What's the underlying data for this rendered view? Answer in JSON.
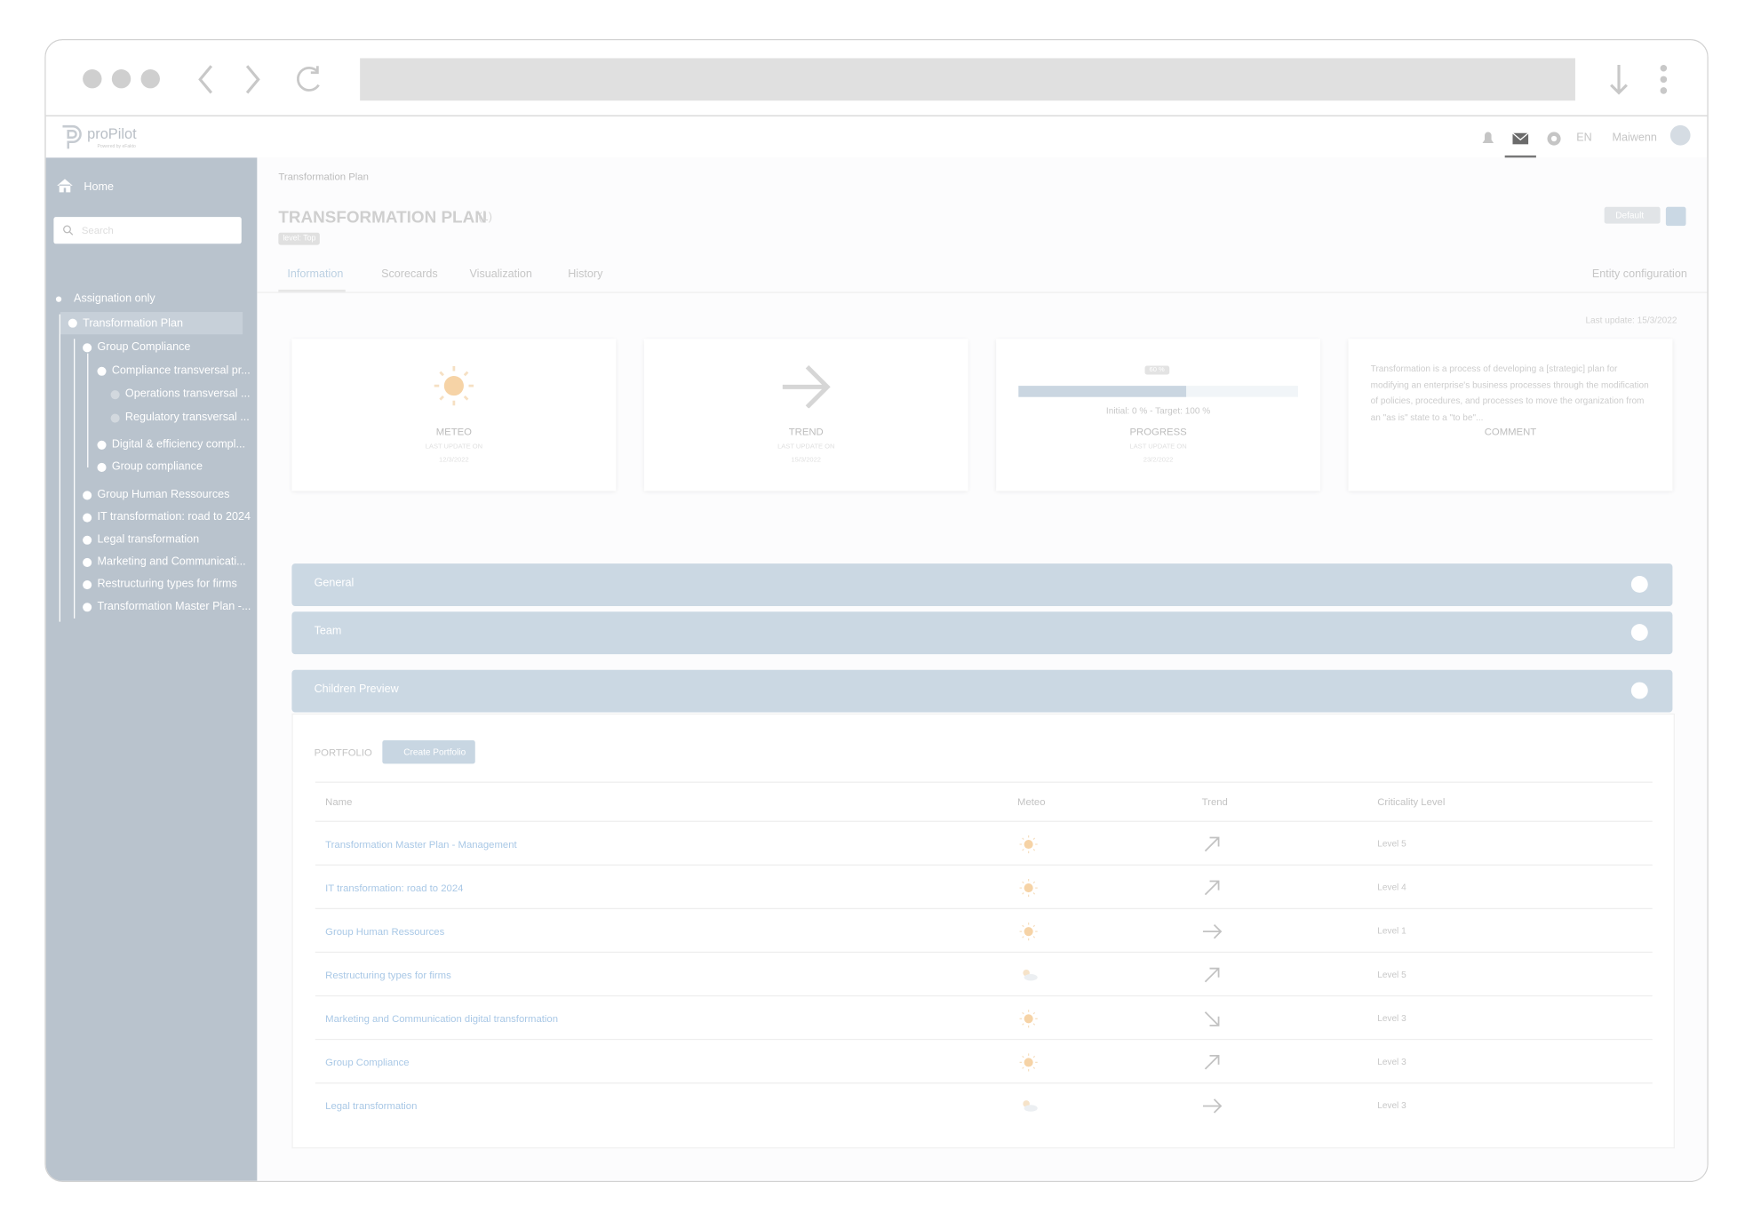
{
  "app": {
    "logo": "proPilot",
    "logo_sub": "Powered by eFakto",
    "language": "EN",
    "user": "Maiwenn"
  },
  "sidebar": {
    "home": "Home",
    "search_placeholder": "Search",
    "assignation": "Assignation only",
    "tree": {
      "label": "Transformation Plan",
      "children": [
        {
          "label": "Group Compliance",
          "children": [
            {
              "label": "Compliance transversal pr...",
              "children": [
                {
                  "label": "Operations transversal ..."
                },
                {
                  "label": "Regulatory transversal ..."
                }
              ]
            },
            {
              "label": "Digital & efficiency compl..."
            },
            {
              "label": "Group compliance"
            }
          ]
        },
        {
          "label": "Group Human Ressources"
        },
        {
          "label": "IT transformation: road to 2024"
        },
        {
          "label": "Legal transformation"
        },
        {
          "label": "Marketing and Communicati..."
        },
        {
          "label": "Restructuring types for firms"
        },
        {
          "label": "Transformation Master Plan -..."
        }
      ]
    }
  },
  "header": {
    "breadcrumb": "Transformation Plan",
    "title": "TRANSFORMATION PLAN",
    "count": "(1)",
    "badge": "level: Top",
    "default_button": "Default"
  },
  "tabs": [
    "Information",
    "Scorecards",
    "Visualization",
    "History"
  ],
  "entity_configuration": "Entity configuration",
  "last_update": "Last update: 15/3/2022",
  "cards": {
    "meteo": {
      "label": "METEO",
      "sub": "LAST UPDATE ON",
      "date": "12/3/2022"
    },
    "trend": {
      "label": "TREND",
      "sub": "LAST UPDATE ON",
      "date": "15/3/2022"
    },
    "progress": {
      "value": 60,
      "value_label": "60 %",
      "text": "Initial: 0 % - Target: 100 %",
      "label": "PROGRESS",
      "sub": "LAST UPDATE ON",
      "date": "23/2/2022"
    },
    "comment": {
      "text": "Transformation is a process of developing a [strategic] plan for modifying an enterprise's business processes through the modification of policies, procedures, and processes to move the organization from an \"as is\" state to a \"to be\"...",
      "label": "COMMENT"
    }
  },
  "panels": [
    "General",
    "Team",
    "Children Preview"
  ],
  "portfolio": {
    "label": "PORTFOLIO",
    "button": "Create Portfolio",
    "columns": [
      "Name",
      "Meteo",
      "Trend",
      "Criticality Level"
    ],
    "rows": [
      [
        "Transformation Master Plan - Management",
        "Level 5"
      ],
      [
        "IT transformation: road to 2024",
        "Level 4"
      ],
      [
        "Group Human Ressources",
        "Level 1"
      ],
      [
        "Restructuring types for firms",
        "Level 5"
      ],
      [
        "Marketing and Communication digital transformation",
        "Level 3"
      ],
      [
        "Group Compliance",
        "Level 3"
      ],
      [
        "Legal transformation",
        "Level 3"
      ]
    ]
  }
}
